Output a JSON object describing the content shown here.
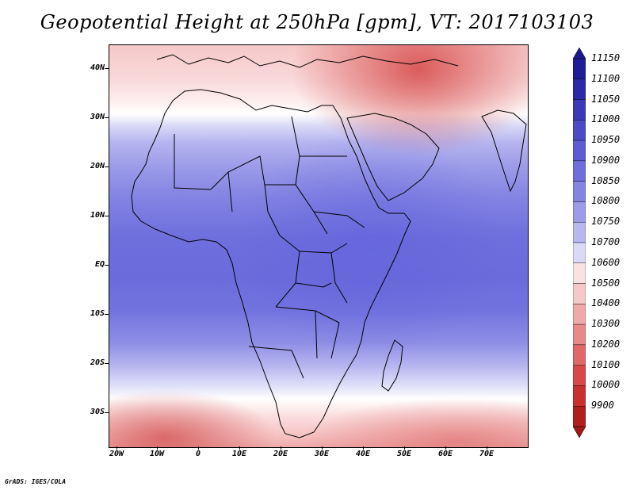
{
  "title": "Geopotential Height at 250hPa [gpm], VT: 2017103103",
  "credit": "GrADS: IGES/COLA",
  "map": {
    "lat_labels": [
      "40N",
      "30N",
      "20N",
      "10N",
      "EQ",
      "10S",
      "20S",
      "30S"
    ],
    "lon_labels": [
      "20W",
      "10W",
      "0",
      "10E",
      "20E",
      "30E",
      "40E",
      "50E",
      "60E",
      "70E"
    ],
    "lat_values": [
      40,
      30,
      20,
      10,
      0,
      -10,
      -20,
      -30
    ],
    "lon_values": [
      -20,
      -10,
      0,
      10,
      20,
      30,
      40,
      50,
      60,
      70
    ],
    "lon_range": [
      -21,
      80
    ],
    "lat_range": [
      -36,
      44
    ]
  },
  "colorbar": {
    "levels": [
      "11150",
      "11100",
      "11050",
      "11000",
      "10950",
      "10900",
      "10850",
      "10800",
      "10750",
      "10700",
      "10600",
      "10500",
      "10400",
      "10300",
      "10200",
      "10100",
      "10000",
      "9900"
    ],
    "colors": [
      "#1e1e96",
      "#2a2aa8",
      "#3a3ab8",
      "#4b4bc6",
      "#5d5dd2",
      "#6f6fdb",
      "#8484e3",
      "#9c9ce9",
      "#b8b8f0",
      "#dadaf7",
      "#fbe2e2",
      "#f6c8c8",
      "#f0a9a9",
      "#e98a8a",
      "#e16868",
      "#d84848",
      "#c83030",
      "#b01e1e"
    ]
  }
}
